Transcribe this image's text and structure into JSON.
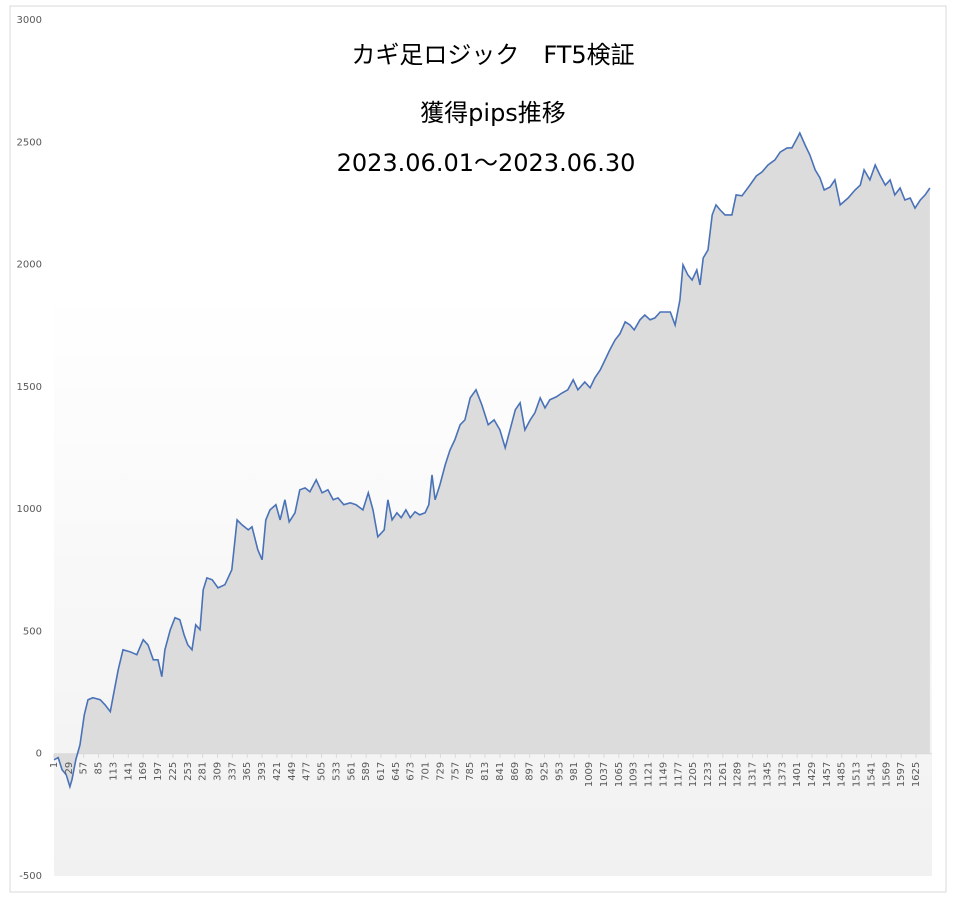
{
  "chart_data": {
    "type": "area",
    "title": "カギ足ロジック　FT5検証",
    "subtitle": "獲得pips推移",
    "period": "2023.06.01～2023.06.30",
    "color": "#4a72b8",
    "fill": "#dcdcdc",
    "xlim": [
      1,
      1655
    ],
    "ylim": [
      -500,
      3000
    ],
    "yticks": [
      -500,
      0,
      500,
      1000,
      1500,
      2000,
      2500,
      3000
    ],
    "xticks": [
      1,
      29,
      57,
      85,
      113,
      141,
      169,
      197,
      225,
      253,
      281,
      309,
      337,
      365,
      393,
      421,
      449,
      477,
      505,
      533,
      561,
      589,
      617,
      645,
      673,
      701,
      729,
      757,
      785,
      813,
      841,
      869,
      897,
      925,
      953,
      981,
      1009,
      1037,
      1065,
      1093,
      1121,
      1149,
      1177,
      1205,
      1233,
      1261,
      1289,
      1317,
      1345,
      1373,
      1401,
      1429,
      1457,
      1485,
      1513,
      1541,
      1569,
      1597,
      1625
    ],
    "x": [
      1,
      9,
      16,
      24,
      31,
      35,
      42,
      50,
      58,
      65,
      74,
      88,
      97,
      107,
      112,
      122,
      131,
      144,
      157,
      169,
      178,
      188,
      197,
      204,
      210,
      220,
      229,
      238,
      246,
      253,
      261,
      268,
      276,
      282,
      289,
      299,
      310,
      323,
      336,
      346,
      355,
      367,
      374,
      385,
      393,
      400,
      408,
      419,
      427,
      436,
      444,
      455,
      464,
      474,
      483,
      495,
      506,
      517,
      527,
      536,
      547,
      559,
      570,
      583,
      593,
      602,
      611,
      623,
      630,
      638,
      647,
      655,
      664,
      672,
      681,
      690,
      700,
      707,
      713,
      719,
      728,
      738,
      747,
      756,
      766,
      775,
      785,
      796,
      807,
      819,
      830,
      841,
      851,
      860,
      870,
      879,
      888,
      898,
      907,
      917,
      926,
      935,
      947,
      958,
      969,
      979,
      988,
      1001,
      1011,
      1020,
      1030,
      1039,
      1048,
      1058,
      1067,
      1077,
      1086,
      1094,
      1105,
      1114,
      1124,
      1133,
      1143,
      1162,
      1171,
      1180,
      1186,
      1195,
      1203,
      1212,
      1218,
      1224,
      1233,
      1241,
      1248,
      1256,
      1265,
      1278,
      1286,
      1297,
      1312,
      1324,
      1335,
      1346,
      1359,
      1369,
      1382,
      1391,
      1399,
      1406,
      1416,
      1425,
      1435,
      1444,
      1452,
      1463,
      1472,
      1482,
      1497,
      1510,
      1520,
      1527,
      1538,
      1548,
      1557,
      1567,
      1576,
      1585,
      1595,
      1604,
      1614,
      1623,
      1633,
      1642,
      1651
    ],
    "values": [
      -25,
      -16,
      -65,
      -86,
      -135,
      -106,
      -25,
      37,
      159,
      221,
      229,
      221,
      200,
      172,
      229,
      343,
      425,
      417,
      405,
      466,
      445,
      384,
      384,
      315,
      425,
      507,
      556,
      548,
      486,
      445,
      425,
      527,
      507,
      670,
      719,
      711,
      678,
      691,
      752,
      956,
      936,
      915,
      928,
      834,
      793,
      956,
      997,
      1018,
      956,
      1038,
      948,
      985,
      1079,
      1087,
      1071,
      1120,
      1067,
      1079,
      1038,
      1046,
      1018,
      1026,
      1018,
      997,
      1067,
      997,
      887,
      915,
      1038,
      956,
      985,
      965,
      997,
      965,
      989,
      977,
      985,
      1018,
      1140,
      1038,
      1099,
      1181,
      1242,
      1283,
      1345,
      1365,
      1455,
      1488,
      1426,
      1345,
      1365,
      1324,
      1251,
      1324,
      1406,
      1435,
      1324,
      1365,
      1394,
      1455,
      1414,
      1447,
      1459,
      1475,
      1488,
      1529,
      1488,
      1520,
      1496,
      1537,
      1569,
      1610,
      1651,
      1692,
      1717,
      1766,
      1753,
      1733,
      1774,
      1794,
      1774,
      1782,
      1806,
      1806,
      1753,
      1855,
      1999,
      1958,
      1937,
      1978,
      1917,
      2027,
      2060,
      2203,
      2244,
      2223,
      2203,
      2203,
      2285,
      2281,
      2325,
      2362,
      2379,
      2407,
      2428,
      2460,
      2477,
      2477,
      2509,
      2538,
      2489,
      2448,
      2387,
      2354,
      2305,
      2317,
      2346,
      2244,
      2272,
      2305,
      2325,
      2387,
      2346,
      2407,
      2366,
      2325,
      2346,
      2285,
      2313,
      2264,
      2272,
      2231,
      2264,
      2285,
      2313
    ]
  }
}
